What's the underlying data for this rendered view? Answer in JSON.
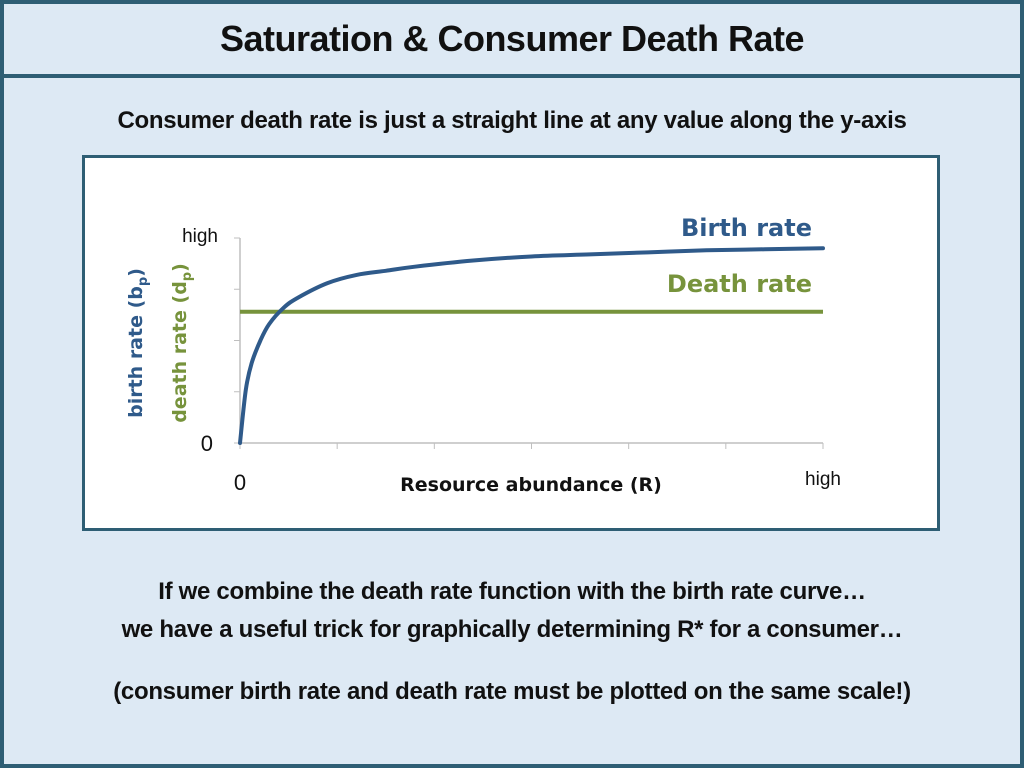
{
  "slide": {
    "title": "Saturation & Consumer Death Rate",
    "subtitle": "Consumer death rate is just a straight line at any value along the y-axis",
    "line1": "If we combine the death rate function with the birth rate curve…",
    "line2": "we have a useful trick for graphically determining R* for a consumer…",
    "line3": "(consumer birth rate and death rate must be plotted on the same scale!)"
  },
  "chart_data": {
    "type": "line",
    "title": "",
    "xlabel": "Resource abundance (R)",
    "ylabel_birth": "birth rate (b",
    "ylabel_birth_sub": "p",
    "ylabel_death": "death rate (d",
    "ylabel_death_sub": "p",
    "label_close": ")",
    "x_tick_low": "0",
    "x_tick_high": "high",
    "y_tick_low": "0",
    "y_tick_high": "high",
    "xlim": [
      0,
      10
    ],
    "ylim": [
      0,
      10
    ],
    "series": [
      {
        "name": "Birth rate",
        "color": "#2f5a8a",
        "x": [
          0,
          0.1,
          0.2,
          0.35,
          0.5,
          0.75,
          1,
          1.5,
          2,
          2.5,
          3,
          4,
          5,
          6,
          7,
          8,
          9,
          10
        ],
        "y": [
          0,
          2.6,
          3.9,
          5.0,
          5.8,
          6.6,
          7.1,
          7.8,
          8.2,
          8.4,
          8.6,
          8.9,
          9.1,
          9.2,
          9.3,
          9.4,
          9.45,
          9.5
        ]
      },
      {
        "name": "Death rate",
        "color": "#77933c",
        "x": [
          0,
          10
        ],
        "y": [
          6.4,
          6.4
        ]
      }
    ]
  }
}
